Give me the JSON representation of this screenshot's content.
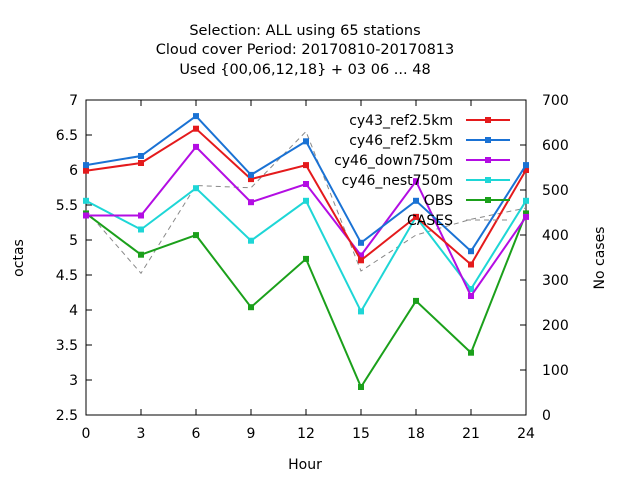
{
  "chart_data": {
    "type": "line",
    "title": [
      "Selection: ALL using    65 stations",
      "Cloud cover   Period: 20170810-20170813",
      "Used {00,06,12,18} + 03 06 ... 48"
    ],
    "xlabel": "Hour",
    "ylabel": "octas",
    "y2label": "No cases",
    "x": [
      0,
      3,
      6,
      9,
      12,
      15,
      18,
      21,
      24
    ],
    "xticks": [
      "0",
      "3",
      "6",
      "9",
      "12",
      "15",
      "18",
      "21",
      "24"
    ],
    "ylim": [
      2.5,
      7
    ],
    "yticks": [
      "2.5",
      "3",
      "3.5",
      "4",
      "4.5",
      "5",
      "5.5",
      "6",
      "6.5",
      "7"
    ],
    "y2lim": [
      0,
      700
    ],
    "y2ticks": [
      "0",
      "100",
      "200",
      "300",
      "400",
      "500",
      "600",
      "700"
    ],
    "legend_position": "top-right",
    "series": [
      {
        "name": "cy43_ref2.5km",
        "color": "#e41a1c",
        "axis": "y1",
        "values": [
          5.99,
          6.1,
          6.59,
          5.87,
          6.07,
          4.71,
          5.33,
          4.65,
          6.0
        ]
      },
      {
        "name": "cy46_ref2.5km",
        "color": "#1a72d4",
        "axis": "y1",
        "values": [
          6.07,
          6.2,
          6.77,
          5.93,
          6.41,
          4.96,
          5.56,
          4.84,
          6.07
        ]
      },
      {
        "name": "cy46_down750m",
        "color": "#b30de3",
        "axis": "y1",
        "values": [
          5.35,
          5.35,
          6.33,
          5.54,
          5.8,
          4.78,
          5.84,
          4.2,
          5.33
        ]
      },
      {
        "name": "cy46_nest750m",
        "color": "#1ed6d6",
        "axis": "y1",
        "values": [
          5.56,
          5.15,
          5.74,
          4.99,
          5.56,
          3.98,
          5.33,
          4.3,
          5.56
        ]
      },
      {
        "name": "OBS",
        "color": "#1ba01b",
        "axis": "y1",
        "values": [
          5.38,
          4.79,
          5.07,
          4.04,
          4.73,
          2.9,
          4.13,
          3.39,
          5.38
        ]
      },
      {
        "name": "CASES",
        "color": "#888888",
        "axis": "y2",
        "dashed": true,
        "values": [
          455,
          315,
          510,
          505,
          630,
          320,
          400,
          435,
          460
        ]
      }
    ]
  }
}
